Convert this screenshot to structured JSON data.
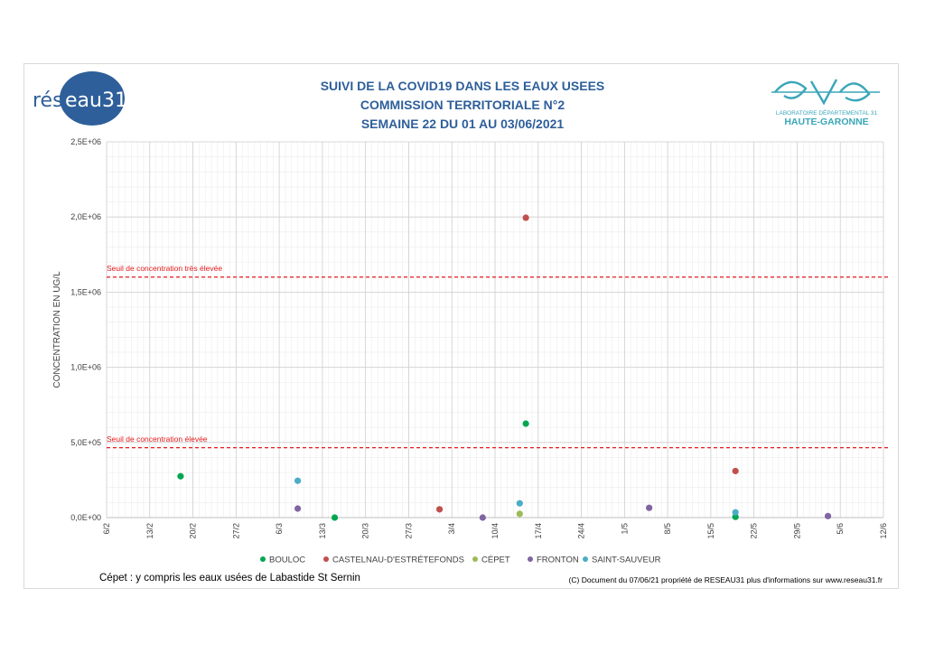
{
  "header": {
    "title_line1": "SUIVI DE LA COVID19 DANS LES EAUX USEES",
    "title_line2": "COMMISSION TERRITORIALE N°2",
    "title_line3": "SEMAINE 22 DU 01 AU 03/06/2021"
  },
  "logos": {
    "left_text_a": "rés",
    "left_text_b": "eau31",
    "right_line1": "LABORATOIRE DÉPARTEMENTAL 31",
    "right_line2": "HAUTE-GARONNE"
  },
  "footer": {
    "note_left": "Cépet : y compris les eaux usées de Labastide St Sernin",
    "note_right": "(C) Document du 07/06/21 propriété de RESEAU31 plus d'informations sur www.reseau31.fr"
  },
  "chart_data": {
    "type": "scatter",
    "ylabel": "CONCENTRATION EN UG/L",
    "xlabel": "",
    "ylim": [
      0,
      2500000
    ],
    "yticks": [
      0,
      500000,
      1000000,
      1500000,
      2000000,
      2500000
    ],
    "ytick_labels": [
      "0,0E+00",
      "5,0E+05",
      "1,0E+06",
      "1,5E+06",
      "2,0E+06",
      "2,5E+06"
    ],
    "xlim": [
      "2021-02-06",
      "2021-06-12"
    ],
    "xticks": [
      "2021-02-06",
      "2021-02-13",
      "2021-02-20",
      "2021-02-27",
      "2021-03-06",
      "2021-03-13",
      "2021-03-20",
      "2021-03-27",
      "2021-04-03",
      "2021-04-10",
      "2021-04-17",
      "2021-04-24",
      "2021-05-01",
      "2021-05-08",
      "2021-05-15",
      "2021-05-22",
      "2021-05-29",
      "2021-06-05",
      "2021-06-12"
    ],
    "xtick_labels": [
      "6/2",
      "13/2",
      "20/2",
      "27/2",
      "6/3",
      "13/3",
      "20/3",
      "27/3",
      "3/4",
      "10/4",
      "17/4",
      "24/4",
      "1/5",
      "8/5",
      "15/5",
      "22/5",
      "29/5",
      "5/6",
      "12/6"
    ],
    "grid": true,
    "legend_position": "bottom",
    "thresholds": [
      {
        "label": "Seuil de concentration très élevée",
        "value": 1600000,
        "color": "#e41a1c"
      },
      {
        "label": "Seuil de concentration élevée",
        "value": 465000,
        "color": "#e41a1c"
      }
    ],
    "series": [
      {
        "name": "BOULOC",
        "color": "#00a650",
        "points": [
          [
            "2021-02-18",
            275000
          ],
          [
            "2021-03-15",
            0
          ],
          [
            "2021-04-15",
            625000
          ],
          [
            "2021-05-19",
            5000
          ]
        ]
      },
      {
        "name": "CASTELNAU-D'ESTRÉTEFONDS",
        "color": "#c0504d",
        "points": [
          [
            "2021-04-01",
            55000
          ],
          [
            "2021-04-15",
            1995000
          ],
          [
            "2021-05-19",
            310000
          ]
        ]
      },
      {
        "name": "CÉPET",
        "color": "#9bbb59",
        "points": [
          [
            "2021-04-14",
            25000
          ]
        ]
      },
      {
        "name": "FRONTON",
        "color": "#8064a2",
        "points": [
          [
            "2021-03-09",
            60000
          ],
          [
            "2021-04-08",
            0
          ],
          [
            "2021-05-05",
            65000
          ],
          [
            "2021-06-03",
            10000
          ]
        ]
      },
      {
        "name": "SAINT-SAUVEUR",
        "color": "#4bacc6",
        "points": [
          [
            "2021-03-09",
            245000
          ],
          [
            "2021-04-14",
            95000
          ],
          [
            "2021-05-19",
            35000
          ]
        ]
      }
    ]
  }
}
